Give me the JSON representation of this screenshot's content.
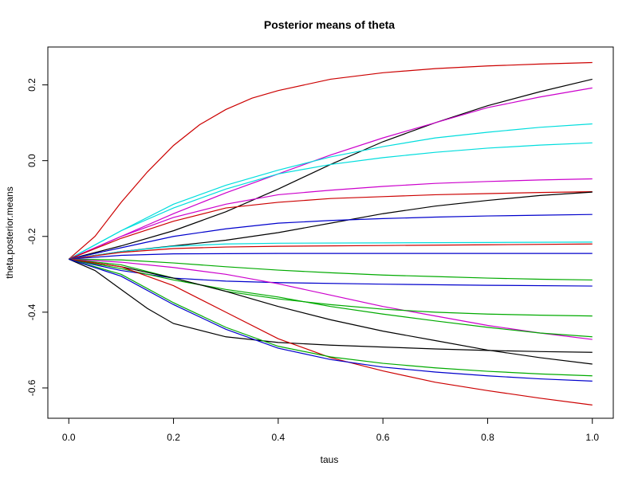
{
  "chart_data": {
    "type": "line",
    "title": "Posterior means of theta",
    "xlabel": "taus",
    "ylabel": "theta.posterior.means",
    "xlim": [
      -0.04,
      1.04
    ],
    "ylim": [
      -0.68,
      0.3
    ],
    "x_ticks": [
      0.0,
      0.2,
      0.4,
      0.6,
      0.8,
      1.0
    ],
    "x_tick_labels": [
      "0.0",
      "0.2",
      "0.4",
      "0.6",
      "0.8",
      "1.0"
    ],
    "y_ticks": [
      -0.6,
      -0.4,
      -0.2,
      0.0,
      0.2
    ],
    "y_tick_labels": [
      "-0.6",
      "-0.4",
      "-0.2",
      "0.0",
      "0.2"
    ],
    "grid": false,
    "legend": "none",
    "start_value": -0.26,
    "series": [
      {
        "color": "#cc0000",
        "points": [
          [
            0.0,
            -0.26
          ],
          [
            0.05,
            -0.2
          ],
          [
            0.1,
            -0.11
          ],
          [
            0.15,
            -0.03
          ],
          [
            0.2,
            0.04
          ],
          [
            0.25,
            0.095
          ],
          [
            0.3,
            0.135
          ],
          [
            0.35,
            0.165
          ],
          [
            0.4,
            0.185
          ],
          [
            0.5,
            0.215
          ],
          [
            0.6,
            0.232
          ],
          [
            0.7,
            0.243
          ],
          [
            0.8,
            0.25
          ],
          [
            0.9,
            0.255
          ],
          [
            1.0,
            0.259
          ]
        ]
      },
      {
        "color": "#000000",
        "points": [
          [
            0.0,
            -0.26
          ],
          [
            0.1,
            -0.225
          ],
          [
            0.2,
            -0.185
          ],
          [
            0.3,
            -0.135
          ],
          [
            0.4,
            -0.075
          ],
          [
            0.5,
            -0.01
          ],
          [
            0.6,
            0.05
          ],
          [
            0.7,
            0.1
          ],
          [
            0.8,
            0.145
          ],
          [
            0.9,
            0.182
          ],
          [
            1.0,
            0.215
          ]
        ]
      },
      {
        "color": "#cc00cc",
        "points": [
          [
            0.0,
            -0.26
          ],
          [
            0.1,
            -0.2
          ],
          [
            0.2,
            -0.14
          ],
          [
            0.3,
            -0.085
          ],
          [
            0.4,
            -0.035
          ],
          [
            0.5,
            0.015
          ],
          [
            0.6,
            0.06
          ],
          [
            0.7,
            0.1
          ],
          [
            0.8,
            0.14
          ],
          [
            0.9,
            0.168
          ],
          [
            1.0,
            0.192
          ]
        ]
      },
      {
        "color": "#00dddd",
        "points": [
          [
            0.0,
            -0.26
          ],
          [
            0.1,
            -0.185
          ],
          [
            0.2,
            -0.115
          ],
          [
            0.3,
            -0.065
          ],
          [
            0.4,
            -0.025
          ],
          [
            0.5,
            0.01
          ],
          [
            0.6,
            0.037
          ],
          [
            0.7,
            0.06
          ],
          [
            0.8,
            0.075
          ],
          [
            0.9,
            0.088
          ],
          [
            1.0,
            0.097
          ]
        ]
      },
      {
        "color": "#00dddd",
        "points": [
          [
            0.0,
            -0.26
          ],
          [
            0.1,
            -0.185
          ],
          [
            0.2,
            -0.125
          ],
          [
            0.3,
            -0.075
          ],
          [
            0.4,
            -0.035
          ],
          [
            0.5,
            -0.01
          ],
          [
            0.6,
            0.008
          ],
          [
            0.7,
            0.022
          ],
          [
            0.8,
            0.033
          ],
          [
            0.9,
            0.041
          ],
          [
            1.0,
            0.047
          ]
        ]
      },
      {
        "color": "#cc00cc",
        "points": [
          [
            0.0,
            -0.26
          ],
          [
            0.1,
            -0.2
          ],
          [
            0.2,
            -0.15
          ],
          [
            0.3,
            -0.115
          ],
          [
            0.4,
            -0.09
          ],
          [
            0.5,
            -0.078
          ],
          [
            0.6,
            -0.068
          ],
          [
            0.7,
            -0.06
          ],
          [
            0.8,
            -0.055
          ],
          [
            0.9,
            -0.051
          ],
          [
            1.0,
            -0.048
          ]
        ]
      },
      {
        "color": "#cc0000",
        "points": [
          [
            0.0,
            -0.26
          ],
          [
            0.1,
            -0.205
          ],
          [
            0.2,
            -0.16
          ],
          [
            0.3,
            -0.125
          ],
          [
            0.4,
            -0.11
          ],
          [
            0.5,
            -0.1
          ],
          [
            0.6,
            -0.095
          ],
          [
            0.7,
            -0.09
          ],
          [
            0.8,
            -0.087
          ],
          [
            0.9,
            -0.084
          ],
          [
            1.0,
            -0.082
          ]
        ]
      },
      {
        "color": "#000000",
        "points": [
          [
            0.0,
            -0.26
          ],
          [
            0.1,
            -0.24
          ],
          [
            0.2,
            -0.225
          ],
          [
            0.3,
            -0.21
          ],
          [
            0.4,
            -0.19
          ],
          [
            0.5,
            -0.165
          ],
          [
            0.6,
            -0.14
          ],
          [
            0.7,
            -0.12
          ],
          [
            0.8,
            -0.105
          ],
          [
            0.9,
            -0.092
          ],
          [
            1.0,
            -0.083
          ]
        ]
      },
      {
        "color": "#0000cc",
        "points": [
          [
            0.0,
            -0.26
          ],
          [
            0.1,
            -0.23
          ],
          [
            0.2,
            -0.2
          ],
          [
            0.3,
            -0.18
          ],
          [
            0.4,
            -0.165
          ],
          [
            0.5,
            -0.158
          ],
          [
            0.6,
            -0.153
          ],
          [
            0.7,
            -0.149
          ],
          [
            0.8,
            -0.146
          ],
          [
            0.9,
            -0.144
          ],
          [
            1.0,
            -0.142
          ]
        ]
      },
      {
        "color": "#00dddd",
        "points": [
          [
            0.0,
            -0.26
          ],
          [
            0.1,
            -0.24
          ],
          [
            0.2,
            -0.226
          ],
          [
            0.3,
            -0.22
          ],
          [
            0.4,
            -0.218
          ],
          [
            0.6,
            -0.217
          ],
          [
            0.8,
            -0.216
          ],
          [
            1.0,
            -0.215
          ]
        ]
      },
      {
        "color": "#cc0000",
        "points": [
          [
            0.0,
            -0.26
          ],
          [
            0.1,
            -0.242
          ],
          [
            0.2,
            -0.232
          ],
          [
            0.3,
            -0.228
          ],
          [
            0.4,
            -0.226
          ],
          [
            0.6,
            -0.224
          ],
          [
            0.8,
            -0.222
          ],
          [
            1.0,
            -0.22
          ]
        ]
      },
      {
        "color": "#0000cc",
        "points": [
          [
            0.0,
            -0.26
          ],
          [
            0.1,
            -0.25
          ],
          [
            0.2,
            -0.246
          ],
          [
            0.4,
            -0.245
          ],
          [
            0.6,
            -0.245
          ],
          [
            0.8,
            -0.245
          ],
          [
            1.0,
            -0.245
          ]
        ]
      },
      {
        "color": "#00aa00",
        "points": [
          [
            0.0,
            -0.26
          ],
          [
            0.1,
            -0.262
          ],
          [
            0.2,
            -0.27
          ],
          [
            0.3,
            -0.28
          ],
          [
            0.4,
            -0.289
          ],
          [
            0.5,
            -0.296
          ],
          [
            0.6,
            -0.302
          ],
          [
            0.7,
            -0.306
          ],
          [
            0.8,
            -0.31
          ],
          [
            0.9,
            -0.313
          ],
          [
            1.0,
            -0.315
          ]
        ]
      },
      {
        "color": "#0000cc",
        "points": [
          [
            0.0,
            -0.26
          ],
          [
            0.1,
            -0.29
          ],
          [
            0.2,
            -0.31
          ],
          [
            0.3,
            -0.318
          ],
          [
            0.4,
            -0.322
          ],
          [
            0.6,
            -0.326
          ],
          [
            0.8,
            -0.329
          ],
          [
            1.0,
            -0.331
          ]
        ]
      },
      {
        "color": "#cc00cc",
        "points": [
          [
            0.0,
            -0.26
          ],
          [
            0.1,
            -0.268
          ],
          [
            0.2,
            -0.282
          ],
          [
            0.3,
            -0.3
          ],
          [
            0.4,
            -0.325
          ],
          [
            0.5,
            -0.355
          ],
          [
            0.6,
            -0.385
          ],
          [
            0.7,
            -0.41
          ],
          [
            0.8,
            -0.435
          ],
          [
            0.9,
            -0.455
          ],
          [
            1.0,
            -0.472
          ]
        ]
      },
      {
        "color": "#00aa00",
        "points": [
          [
            0.0,
            -0.26
          ],
          [
            0.1,
            -0.275
          ],
          [
            0.2,
            -0.31
          ],
          [
            0.3,
            -0.345
          ],
          [
            0.4,
            -0.365
          ],
          [
            0.5,
            -0.38
          ],
          [
            0.6,
            -0.392
          ],
          [
            0.7,
            -0.4
          ],
          [
            0.8,
            -0.405
          ],
          [
            0.9,
            -0.408
          ],
          [
            1.0,
            -0.41
          ]
        ]
      },
      {
        "color": "#00aa00",
        "points": [
          [
            0.0,
            -0.26
          ],
          [
            0.1,
            -0.285
          ],
          [
            0.2,
            -0.315
          ],
          [
            0.3,
            -0.34
          ],
          [
            0.4,
            -0.36
          ],
          [
            0.5,
            -0.385
          ],
          [
            0.6,
            -0.405
          ],
          [
            0.7,
            -0.423
          ],
          [
            0.8,
            -0.44
          ],
          [
            0.9,
            -0.455
          ],
          [
            1.0,
            -0.465
          ]
        ]
      },
      {
        "color": "#000000",
        "points": [
          [
            0.0,
            -0.26
          ],
          [
            0.1,
            -0.28
          ],
          [
            0.2,
            -0.31
          ],
          [
            0.3,
            -0.345
          ],
          [
            0.4,
            -0.385
          ],
          [
            0.5,
            -0.42
          ],
          [
            0.6,
            -0.45
          ],
          [
            0.7,
            -0.475
          ],
          [
            0.8,
            -0.5
          ],
          [
            0.9,
            -0.52
          ],
          [
            1.0,
            -0.537
          ]
        ]
      },
      {
        "color": "#000000",
        "points": [
          [
            0.0,
            -0.26
          ],
          [
            0.05,
            -0.29
          ],
          [
            0.1,
            -0.34
          ],
          [
            0.15,
            -0.39
          ],
          [
            0.2,
            -0.43
          ],
          [
            0.3,
            -0.465
          ],
          [
            0.4,
            -0.48
          ],
          [
            0.5,
            -0.487
          ],
          [
            0.6,
            -0.492
          ],
          [
            0.7,
            -0.497
          ],
          [
            0.8,
            -0.501
          ],
          [
            0.9,
            -0.504
          ],
          [
            1.0,
            -0.506
          ]
        ]
      },
      {
        "color": "#cc0000",
        "points": [
          [
            0.0,
            -0.26
          ],
          [
            0.1,
            -0.28
          ],
          [
            0.2,
            -0.33
          ],
          [
            0.3,
            -0.4
          ],
          [
            0.4,
            -0.47
          ],
          [
            0.5,
            -0.52
          ],
          [
            0.6,
            -0.555
          ],
          [
            0.7,
            -0.585
          ],
          [
            0.8,
            -0.607
          ],
          [
            0.9,
            -0.627
          ],
          [
            1.0,
            -0.645
          ]
        ]
      },
      {
        "color": "#00aa00",
        "points": [
          [
            0.0,
            -0.26
          ],
          [
            0.1,
            -0.3
          ],
          [
            0.2,
            -0.375
          ],
          [
            0.3,
            -0.44
          ],
          [
            0.4,
            -0.49
          ],
          [
            0.5,
            -0.518
          ],
          [
            0.6,
            -0.535
          ],
          [
            0.7,
            -0.547
          ],
          [
            0.8,
            -0.556
          ],
          [
            0.9,
            -0.563
          ],
          [
            1.0,
            -0.568
          ]
        ]
      },
      {
        "color": "#0000cc",
        "points": [
          [
            0.0,
            -0.26
          ],
          [
            0.1,
            -0.305
          ],
          [
            0.2,
            -0.38
          ],
          [
            0.3,
            -0.445
          ],
          [
            0.4,
            -0.495
          ],
          [
            0.5,
            -0.525
          ],
          [
            0.6,
            -0.545
          ],
          [
            0.7,
            -0.558
          ],
          [
            0.8,
            -0.568
          ],
          [
            0.9,
            -0.576
          ],
          [
            1.0,
            -0.582
          ]
        ]
      }
    ]
  }
}
